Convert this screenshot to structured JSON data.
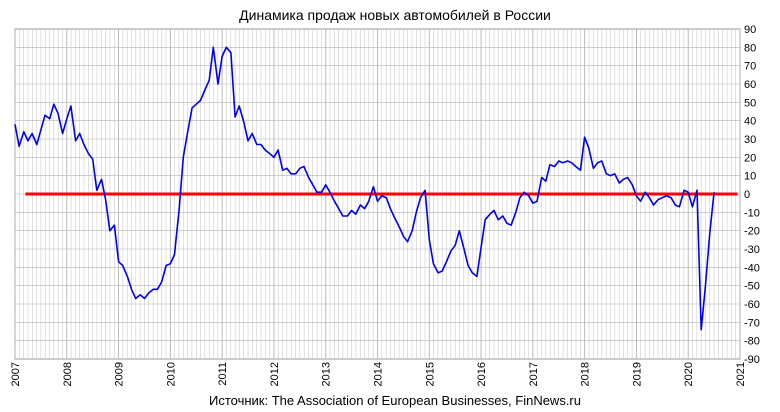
{
  "chart_data": {
    "type": "line",
    "title": "Динамика продаж новых автомобилей в России",
    "source": "Источник: The Association of European Businesses, FinNews.ru",
    "xlabel": "",
    "ylabel": "",
    "xlim": [
      2007,
      2021
    ],
    "ylim": [
      -90,
      90
    ],
    "x_ticks": [
      "2007",
      "2008",
      "2009",
      "2010",
      "2011",
      "2012",
      "2013",
      "2014",
      "2015",
      "2016",
      "2017",
      "2018",
      "2019",
      "2020",
      "2021"
    ],
    "y_ticks": [
      90,
      80,
      70,
      60,
      50,
      40,
      30,
      20,
      10,
      0,
      -10,
      -20,
      -30,
      -40,
      -50,
      -60,
      -70,
      -80,
      -90
    ],
    "grid": true,
    "legend": "none",
    "colors": {
      "series": "#0000ee",
      "zero_line": "#ff0000",
      "grid": "#b4b4b4"
    },
    "series": [
      {
        "points": [
          [
            2007.0,
            38
          ],
          [
            2007.08,
            26
          ],
          [
            2007.17,
            34
          ],
          [
            2007.25,
            29
          ],
          [
            2007.33,
            33
          ],
          [
            2007.42,
            27
          ],
          [
            2007.5,
            35
          ],
          [
            2007.58,
            43
          ],
          [
            2007.67,
            41
          ],
          [
            2007.75,
            49
          ],
          [
            2007.83,
            44
          ],
          [
            2007.92,
            33
          ],
          [
            2008.0,
            41
          ],
          [
            2008.08,
            48
          ],
          [
            2008.17,
            29
          ],
          [
            2008.25,
            33
          ],
          [
            2008.33,
            27
          ],
          [
            2008.42,
            22
          ],
          [
            2008.5,
            19
          ],
          [
            2008.58,
            2
          ],
          [
            2008.67,
            8
          ],
          [
            2008.75,
            -3
          ],
          [
            2008.83,
            -20
          ],
          [
            2008.92,
            -17
          ],
          [
            2009.0,
            -37
          ],
          [
            2009.08,
            -39
          ],
          [
            2009.17,
            -45
          ],
          [
            2009.25,
            -52
          ],
          [
            2009.33,
            -57
          ],
          [
            2009.42,
            -55
          ],
          [
            2009.5,
            -57
          ],
          [
            2009.58,
            -54
          ],
          [
            2009.67,
            -52
          ],
          [
            2009.75,
            -52
          ],
          [
            2009.83,
            -48
          ],
          [
            2009.92,
            -39
          ],
          [
            2010.0,
            -38
          ],
          [
            2010.08,
            -33
          ],
          [
            2010.17,
            -8
          ],
          [
            2010.25,
            20
          ],
          [
            2010.33,
            33
          ],
          [
            2010.42,
            47
          ],
          [
            2010.5,
            49
          ],
          [
            2010.58,
            51
          ],
          [
            2010.67,
            57
          ],
          [
            2010.75,
            62
          ],
          [
            2010.83,
            80
          ],
          [
            2010.92,
            60
          ],
          [
            2011.0,
            75
          ],
          [
            2011.08,
            80
          ],
          [
            2011.17,
            77
          ],
          [
            2011.25,
            42
          ],
          [
            2011.33,
            48
          ],
          [
            2011.42,
            39
          ],
          [
            2011.5,
            29
          ],
          [
            2011.58,
            33
          ],
          [
            2011.67,
            27
          ],
          [
            2011.75,
            27
          ],
          [
            2011.83,
            24
          ],
          [
            2011.92,
            22
          ],
          [
            2012.0,
            20
          ],
          [
            2012.08,
            24
          ],
          [
            2012.17,
            13
          ],
          [
            2012.25,
            14
          ],
          [
            2012.33,
            11
          ],
          [
            2012.42,
            11
          ],
          [
            2012.5,
            14
          ],
          [
            2012.58,
            15
          ],
          [
            2012.67,
            9
          ],
          [
            2012.75,
            5
          ],
          [
            2012.83,
            1
          ],
          [
            2012.92,
            1
          ],
          [
            2013.0,
            5
          ],
          [
            2013.08,
            1
          ],
          [
            2013.17,
            -4
          ],
          [
            2013.25,
            -8
          ],
          [
            2013.33,
            -12
          ],
          [
            2013.42,
            -12
          ],
          [
            2013.5,
            -9
          ],
          [
            2013.58,
            -11
          ],
          [
            2013.67,
            -6
          ],
          [
            2013.75,
            -8
          ],
          [
            2013.83,
            -4
          ],
          [
            2013.92,
            4
          ],
          [
            2014.0,
            -4
          ],
          [
            2014.08,
            -1
          ],
          [
            2014.17,
            -2
          ],
          [
            2014.25,
            -8
          ],
          [
            2014.33,
            -13
          ],
          [
            2014.42,
            -18
          ],
          [
            2014.5,
            -23
          ],
          [
            2014.58,
            -26
          ],
          [
            2014.67,
            -20
          ],
          [
            2014.75,
            -10
          ],
          [
            2014.83,
            -2
          ],
          [
            2014.92,
            2
          ],
          [
            2015.0,
            -25
          ],
          [
            2015.08,
            -38
          ],
          [
            2015.17,
            -43
          ],
          [
            2015.25,
            -42
          ],
          [
            2015.33,
            -37
          ],
          [
            2015.42,
            -31
          ],
          [
            2015.5,
            -28
          ],
          [
            2015.58,
            -20
          ],
          [
            2015.67,
            -30
          ],
          [
            2015.75,
            -39
          ],
          [
            2015.83,
            -43
          ],
          [
            2015.92,
            -45
          ],
          [
            2016.0,
            -29
          ],
          [
            2016.08,
            -14
          ],
          [
            2016.17,
            -11
          ],
          [
            2016.25,
            -9
          ],
          [
            2016.33,
            -14
          ],
          [
            2016.42,
            -12
          ],
          [
            2016.5,
            -16
          ],
          [
            2016.58,
            -17
          ],
          [
            2016.67,
            -10
          ],
          [
            2016.75,
            -2
          ],
          [
            2016.83,
            1
          ],
          [
            2016.92,
            -1
          ],
          [
            2017.0,
            -5
          ],
          [
            2017.08,
            -4
          ],
          [
            2017.17,
            9
          ],
          [
            2017.25,
            7
          ],
          [
            2017.33,
            16
          ],
          [
            2017.42,
            15
          ],
          [
            2017.5,
            18
          ],
          [
            2017.58,
            17
          ],
          [
            2017.67,
            18
          ],
          [
            2017.75,
            17
          ],
          [
            2017.83,
            15
          ],
          [
            2017.92,
            13
          ],
          [
            2018.0,
            31
          ],
          [
            2018.08,
            25
          ],
          [
            2018.17,
            14
          ],
          [
            2018.25,
            17
          ],
          [
            2018.33,
            18
          ],
          [
            2018.42,
            11
          ],
          [
            2018.5,
            10
          ],
          [
            2018.58,
            11
          ],
          [
            2018.67,
            6
          ],
          [
            2018.75,
            8
          ],
          [
            2018.83,
            9
          ],
          [
            2018.92,
            5
          ],
          [
            2019.0,
            -1
          ],
          [
            2019.08,
            -4
          ],
          [
            2019.17,
            1
          ],
          [
            2019.25,
            -2
          ],
          [
            2019.33,
            -6
          ],
          [
            2019.42,
            -3
          ],
          [
            2019.5,
            -2
          ],
          [
            2019.58,
            -1
          ],
          [
            2019.67,
            -2
          ],
          [
            2019.75,
            -6
          ],
          [
            2019.83,
            -7
          ],
          [
            2019.92,
            2
          ],
          [
            2020.0,
            1
          ],
          [
            2020.08,
            -7
          ],
          [
            2020.17,
            2
          ],
          [
            2020.25,
            -74
          ],
          [
            2020.33,
            -51
          ],
          [
            2020.42,
            -20
          ],
          [
            2020.5,
            1
          ]
        ]
      }
    ],
    "reference_line": {
      "y": 0,
      "x_from": 2007.2,
      "x_to": 2020.95
    }
  }
}
